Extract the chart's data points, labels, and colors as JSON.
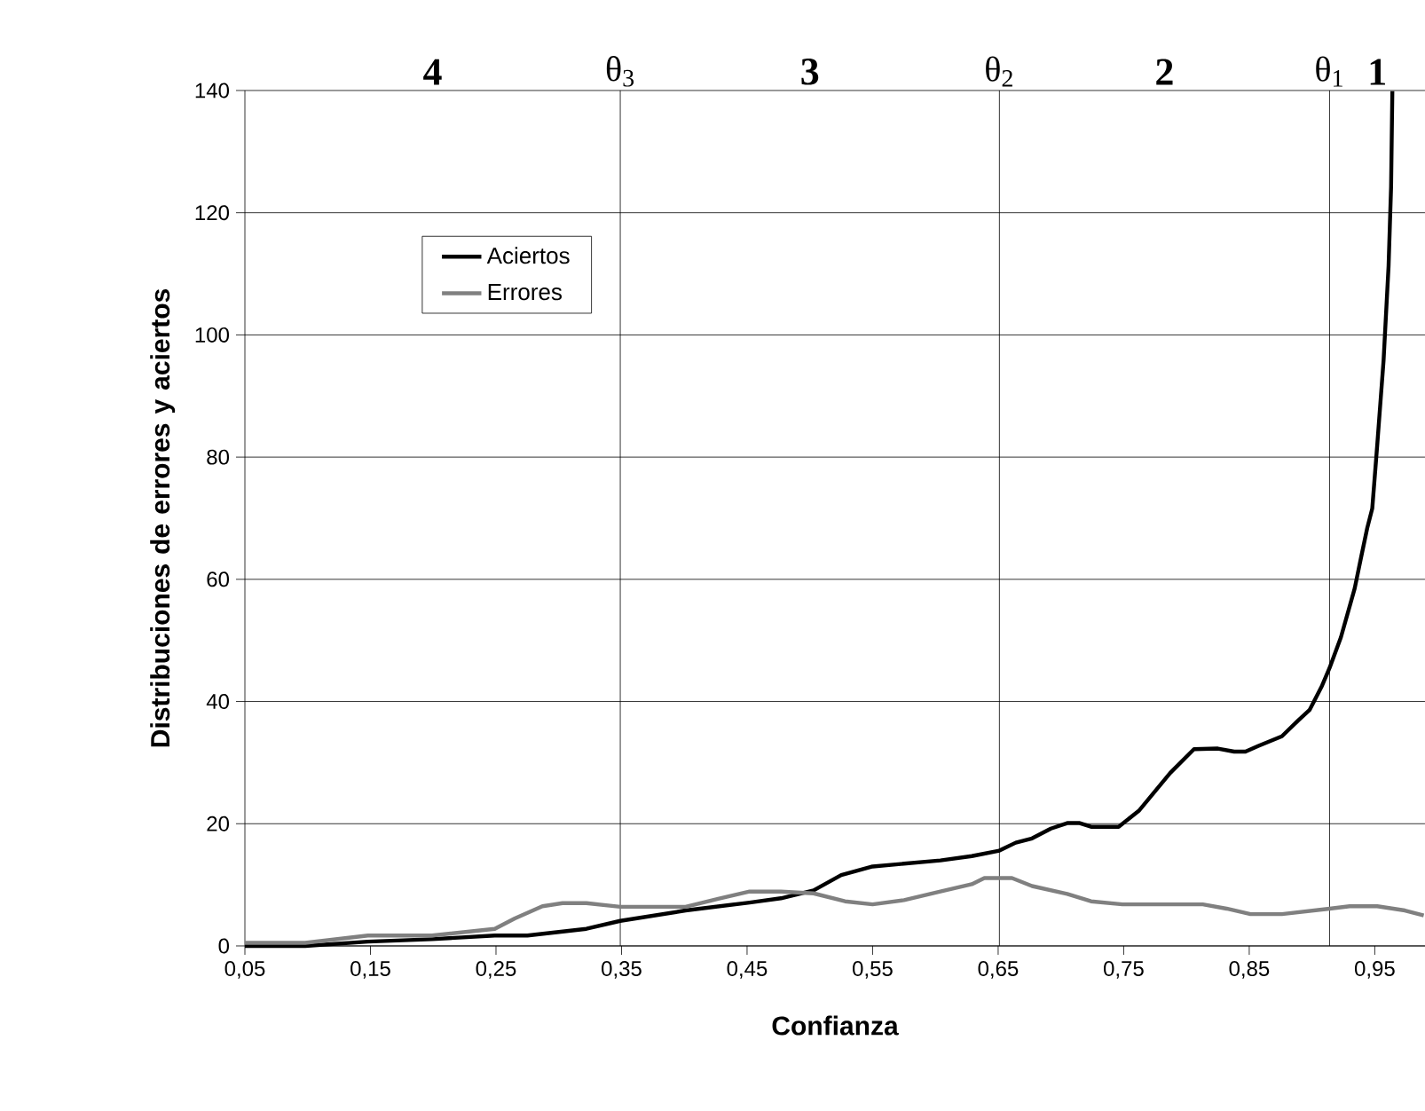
{
  "chart_data": {
    "type": "line",
    "xlabel": "Confianza",
    "ylabel": "Distribuciones de errores y aciertos",
    "xlim": [
      0.05,
      0.99
    ],
    "ylim": [
      0,
      140
    ],
    "xticks": [
      {
        "value": 0.05,
        "label": "0,05"
      },
      {
        "value": 0.15,
        "label": "0,15"
      },
      {
        "value": 0.25,
        "label": "0,25"
      },
      {
        "value": 0.35,
        "label": "0,35"
      },
      {
        "value": 0.45,
        "label": "0,45"
      },
      {
        "value": 0.55,
        "label": "0,55"
      },
      {
        "value": 0.65,
        "label": "0,65"
      },
      {
        "value": 0.75,
        "label": "0,75"
      },
      {
        "value": 0.85,
        "label": "0,85"
      },
      {
        "value": 0.95,
        "label": "0,95"
      }
    ],
    "yticks": [
      0,
      20,
      40,
      60,
      80,
      100,
      120,
      140
    ],
    "grid": "y",
    "legend": "top left",
    "marker": "none",
    "line_style": "solid",
    "ref_lines": [
      {
        "axis": "x",
        "value": 0.349,
        "label": "θ$_{3}$"
      },
      {
        "axis": "x",
        "value": 0.651,
        "label": "θ$_{2}$"
      },
      {
        "axis": "x",
        "value": 0.914,
        "label": "θ$_{1}$"
      }
    ],
    "annotations": [
      "4",
      "3",
      "2",
      "1"
    ],
    "series": [
      {
        "name": "Aciertos",
        "color": "#000000",
        "x": [
          0.05,
          0.098,
          0.148,
          0.199,
          0.249,
          0.275,
          0.322,
          0.349,
          0.401,
          0.452,
          0.477,
          0.503,
          0.525,
          0.55,
          0.604,
          0.629,
          0.651,
          0.664,
          0.677,
          0.692,
          0.705,
          0.715,
          0.724,
          0.746,
          0.762,
          0.787,
          0.806,
          0.825,
          0.838,
          0.847,
          0.857,
          0.876,
          0.889,
          0.898,
          0.908,
          0.914,
          0.923,
          0.934,
          0.939,
          0.944,
          0.948,
          0.952,
          0.957,
          0.961,
          0.963,
          0.964
        ],
        "values": [
          0,
          0,
          0.7,
          1.1,
          1.7,
          1.7,
          2.8,
          4.1,
          5.8,
          7.1,
          7.8,
          9.1,
          11.6,
          13.0,
          14.0,
          14.7,
          15.6,
          16.9,
          17.6,
          19.2,
          20.1,
          20.1,
          19.5,
          19.5,
          22.1,
          28.3,
          32.2,
          32.3,
          31.8,
          31.8,
          32.7,
          34.3,
          36.9,
          38.6,
          42.6,
          45.5,
          50.5,
          58.5,
          63.5,
          68.4,
          71.6,
          82.1,
          95.8,
          111.3,
          124.3,
          139.9
        ]
      },
      {
        "name": "Errores",
        "color": "#808080",
        "x": [
          0.05,
          0.098,
          0.148,
          0.199,
          0.249,
          0.265,
          0.287,
          0.303,
          0.322,
          0.349,
          0.401,
          0.427,
          0.452,
          0.477,
          0.503,
          0.528,
          0.55,
          0.575,
          0.604,
          0.629,
          0.639,
          0.661,
          0.677,
          0.705,
          0.724,
          0.749,
          0.813,
          0.832,
          0.851,
          0.876,
          0.914,
          0.93,
          0.952,
          0.974,
          0.989
        ],
        "values": [
          0.5,
          0.5,
          1.7,
          1.7,
          2.8,
          4.5,
          6.5,
          7.0,
          7.0,
          6.4,
          6.4,
          7.7,
          8.9,
          8.9,
          8.6,
          7.3,
          6.8,
          7.5,
          8.9,
          10.1,
          11.1,
          11.1,
          9.8,
          8.5,
          7.3,
          6.8,
          6.8,
          6.1,
          5.2,
          5.2,
          6.1,
          6.5,
          6.5,
          5.8,
          5.0
        ]
      }
    ]
  }
}
